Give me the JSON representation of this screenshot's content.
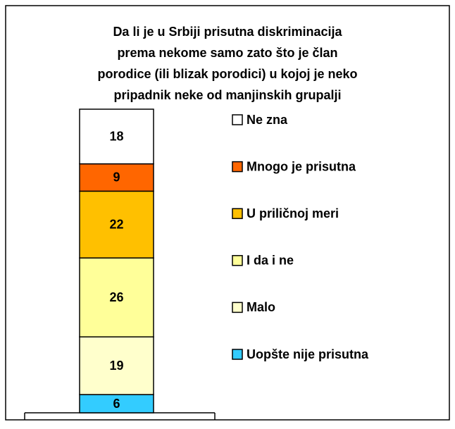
{
  "chart_data": {
    "type": "stacked_bar",
    "title": [
      "Da li je u Srbiji prisutna diskriminacija",
      "prema nekome samo zato što je član",
      "porodice (ili blizak porodici) u kojoj je neko",
      "pripadnik neke od manjinskih grupalji"
    ],
    "ylim": [
      0,
      100
    ],
    "series": [
      {
        "name": "Uopšte nije prisutna",
        "color": "#33ccff",
        "values": [
          6
        ]
      },
      {
        "name": "Malo",
        "color": "#ffffcc",
        "values": [
          19
        ]
      },
      {
        "name": "I da i ne",
        "color": "#ffff99",
        "values": [
          26
        ]
      },
      {
        "name": "U priličnoj meri",
        "color": "#ffc000",
        "values": [
          22
        ]
      },
      {
        "name": "Mnogo je prisutna",
        "color": "#ff6600",
        "values": [
          9
        ]
      },
      {
        "name": "Ne zna",
        "color": "#ffffff",
        "values": [
          18
        ]
      }
    ]
  }
}
